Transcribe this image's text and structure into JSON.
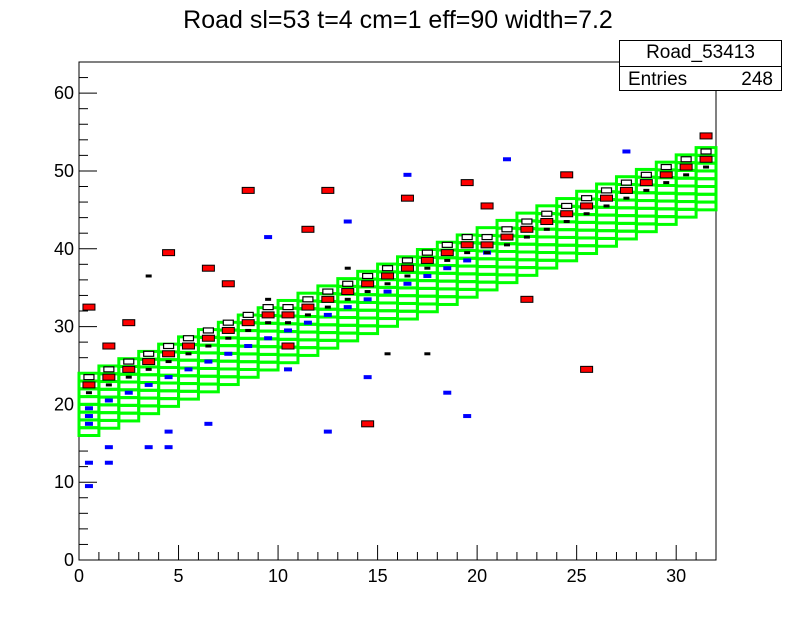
{
  "chart_data": {
    "type": "heatmap",
    "title": "Road sl=53 t=4 cm=1 eff=90 width=7.2",
    "xlabel": "",
    "ylabel": "",
    "xlim": [
      0,
      32
    ],
    "ylim": [
      0,
      64
    ],
    "x_ticks": [
      0,
      5,
      10,
      15,
      20,
      25,
      30
    ],
    "y_ticks": [
      0,
      10,
      20,
      30,
      40,
      50,
      60
    ],
    "stats_box": {
      "name": "Road_53413",
      "entries_label": "Entries",
      "entries_value": "248"
    },
    "road": {
      "color": "#00ff00",
      "lower_start": 16,
      "lower_end": 45,
      "cell_height": 1,
      "layers": 8
    },
    "series": [
      {
        "name": "red",
        "color": "#ff0000",
        "points": [
          [
            0.5,
            22.5
          ],
          [
            1.5,
            23.5
          ],
          [
            2.5,
            24.5
          ],
          [
            3.5,
            25.5
          ],
          [
            4.5,
            26.5
          ],
          [
            5.5,
            27.5
          ],
          [
            6.5,
            28.5
          ],
          [
            7.5,
            29.5
          ],
          [
            8.5,
            30.5
          ],
          [
            9.5,
            31.5
          ],
          [
            10.5,
            31.5
          ],
          [
            11.5,
            32.5
          ],
          [
            12.5,
            33.5
          ],
          [
            13.5,
            34.5
          ],
          [
            14.5,
            35.5
          ],
          [
            15.5,
            36.5
          ],
          [
            16.5,
            37.5
          ],
          [
            17.5,
            38.5
          ],
          [
            18.5,
            39.5
          ],
          [
            19.5,
            40.5
          ],
          [
            20.5,
            40.5
          ],
          [
            21.5,
            41.5
          ],
          [
            22.5,
            42.5
          ],
          [
            23.5,
            43.5
          ],
          [
            24.5,
            44.5
          ],
          [
            25.5,
            45.5
          ],
          [
            26.5,
            46.5
          ],
          [
            27.5,
            47.5
          ],
          [
            28.5,
            48.5
          ],
          [
            29.5,
            49.5
          ],
          [
            30.5,
            50.5
          ],
          [
            31.5,
            51.5
          ],
          [
            0.5,
            32.5
          ],
          [
            1.5,
            27.5
          ],
          [
            2.5,
            30.5
          ],
          [
            4.5,
            39.5
          ],
          [
            6.5,
            37.5
          ],
          [
            7.5,
            35.5
          ],
          [
            8.5,
            47.5
          ],
          [
            10.5,
            27.5
          ],
          [
            11.5,
            42.5
          ],
          [
            12.5,
            47.5
          ],
          [
            16.5,
            46.5
          ],
          [
            14.5,
            17.5
          ],
          [
            19.5,
            48.5
          ],
          [
            20.5,
            45.5
          ],
          [
            22.5,
            33.5
          ],
          [
            24.5,
            49.5
          ],
          [
            25.5,
            24.5
          ],
          [
            31.5,
            54.5
          ]
        ]
      },
      {
        "name": "blue",
        "color": "#0000ff",
        "points": [
          [
            0.5,
            19.5
          ],
          [
            0.5,
            18.5
          ],
          [
            0.5,
            17.5
          ],
          [
            1.5,
            20.5
          ],
          [
            2.5,
            21.5
          ],
          [
            3.5,
            22.5
          ],
          [
            4.5,
            23.5
          ],
          [
            5.5,
            24.5
          ],
          [
            6.5,
            25.5
          ],
          [
            7.5,
            26.5
          ],
          [
            8.5,
            27.5
          ],
          [
            9.5,
            28.5
          ],
          [
            10.5,
            29.5
          ],
          [
            11.5,
            30.5
          ],
          [
            12.5,
            31.5
          ],
          [
            13.5,
            32.5
          ],
          [
            14.5,
            33.5
          ],
          [
            15.5,
            34.5
          ],
          [
            16.5,
            35.5
          ],
          [
            17.5,
            36.5
          ],
          [
            18.5,
            37.5
          ],
          [
            19.5,
            38.5
          ],
          [
            20.5,
            39.5
          ],
          [
            0.5,
            9.5
          ],
          [
            0.5,
            12.5
          ],
          [
            1.5,
            14.5
          ],
          [
            1.5,
            12.5
          ],
          [
            3.5,
            14.5
          ],
          [
            4.5,
            16.5
          ],
          [
            4.5,
            14.5
          ],
          [
            6.5,
            17.5
          ],
          [
            9.5,
            41.5
          ],
          [
            10.5,
            24.5
          ],
          [
            12.5,
            16.5
          ],
          [
            13.5,
            43.5
          ],
          [
            14.5,
            23.5
          ],
          [
            16.5,
            49.5
          ],
          [
            18.5,
            21.5
          ],
          [
            19.5,
            18.5
          ],
          [
            21.5,
            51.5
          ],
          [
            27.5,
            52.5
          ]
        ]
      },
      {
        "name": "black",
        "color": "#000000",
        "points": [
          [
            0.5,
            21.5
          ],
          [
            1.5,
            22.5
          ],
          [
            2.5,
            23.5
          ],
          [
            3.5,
            24.5
          ],
          [
            4.5,
            25.5
          ],
          [
            5.5,
            26.5
          ],
          [
            6.5,
            27.5
          ],
          [
            7.5,
            28.5
          ],
          [
            8.5,
            29.5
          ],
          [
            9.5,
            30.5
          ],
          [
            10.5,
            30.5
          ],
          [
            11.5,
            31.5
          ],
          [
            12.5,
            32.5
          ],
          [
            13.5,
            33.5
          ],
          [
            14.5,
            34.5
          ],
          [
            15.5,
            35.5
          ],
          [
            16.5,
            36.5
          ],
          [
            17.5,
            37.5
          ],
          [
            18.5,
            38.5
          ],
          [
            19.5,
            39.5
          ],
          [
            20.5,
            39.5
          ],
          [
            21.5,
            40.5
          ],
          [
            22.5,
            41.5
          ],
          [
            23.5,
            42.5
          ],
          [
            24.5,
            43.5
          ],
          [
            25.5,
            44.5
          ],
          [
            26.5,
            45.5
          ],
          [
            27.5,
            46.5
          ],
          [
            28.5,
            47.5
          ],
          [
            29.5,
            48.5
          ],
          [
            30.5,
            49.5
          ],
          [
            31.5,
            50.5
          ],
          [
            3.5,
            36.5
          ],
          [
            9.5,
            33.5
          ],
          [
            13.5,
            37.5
          ],
          [
            15.5,
            26.5
          ],
          [
            17.5,
            26.5
          ]
        ]
      },
      {
        "name": "boxes",
        "color": "#000000",
        "points": [
          [
            0.5,
            23.5
          ],
          [
            1.5,
            24.5
          ],
          [
            2.5,
            25.5
          ],
          [
            3.5,
            26.5
          ],
          [
            4.5,
            27.5
          ],
          [
            5.5,
            28.5
          ],
          [
            6.5,
            29.5
          ],
          [
            7.5,
            30.5
          ],
          [
            8.5,
            31.5
          ],
          [
            9.5,
            32.5
          ],
          [
            10.5,
            32.5
          ],
          [
            11.5,
            33.5
          ],
          [
            12.5,
            34.5
          ],
          [
            13.5,
            35.5
          ],
          [
            14.5,
            36.5
          ],
          [
            15.5,
            37.5
          ],
          [
            16.5,
            38.5
          ],
          [
            17.5,
            39.5
          ],
          [
            18.5,
            40.5
          ],
          [
            19.5,
            41.5
          ],
          [
            20.5,
            41.5
          ],
          [
            21.5,
            42.5
          ],
          [
            22.5,
            43.5
          ],
          [
            23.5,
            44.5
          ],
          [
            24.5,
            45.5
          ],
          [
            25.5,
            46.5
          ],
          [
            26.5,
            47.5
          ],
          [
            27.5,
            48.5
          ],
          [
            28.5,
            49.5
          ],
          [
            29.5,
            50.5
          ],
          [
            30.5,
            51.5
          ],
          [
            31.5,
            52.5
          ]
        ]
      }
    ]
  }
}
